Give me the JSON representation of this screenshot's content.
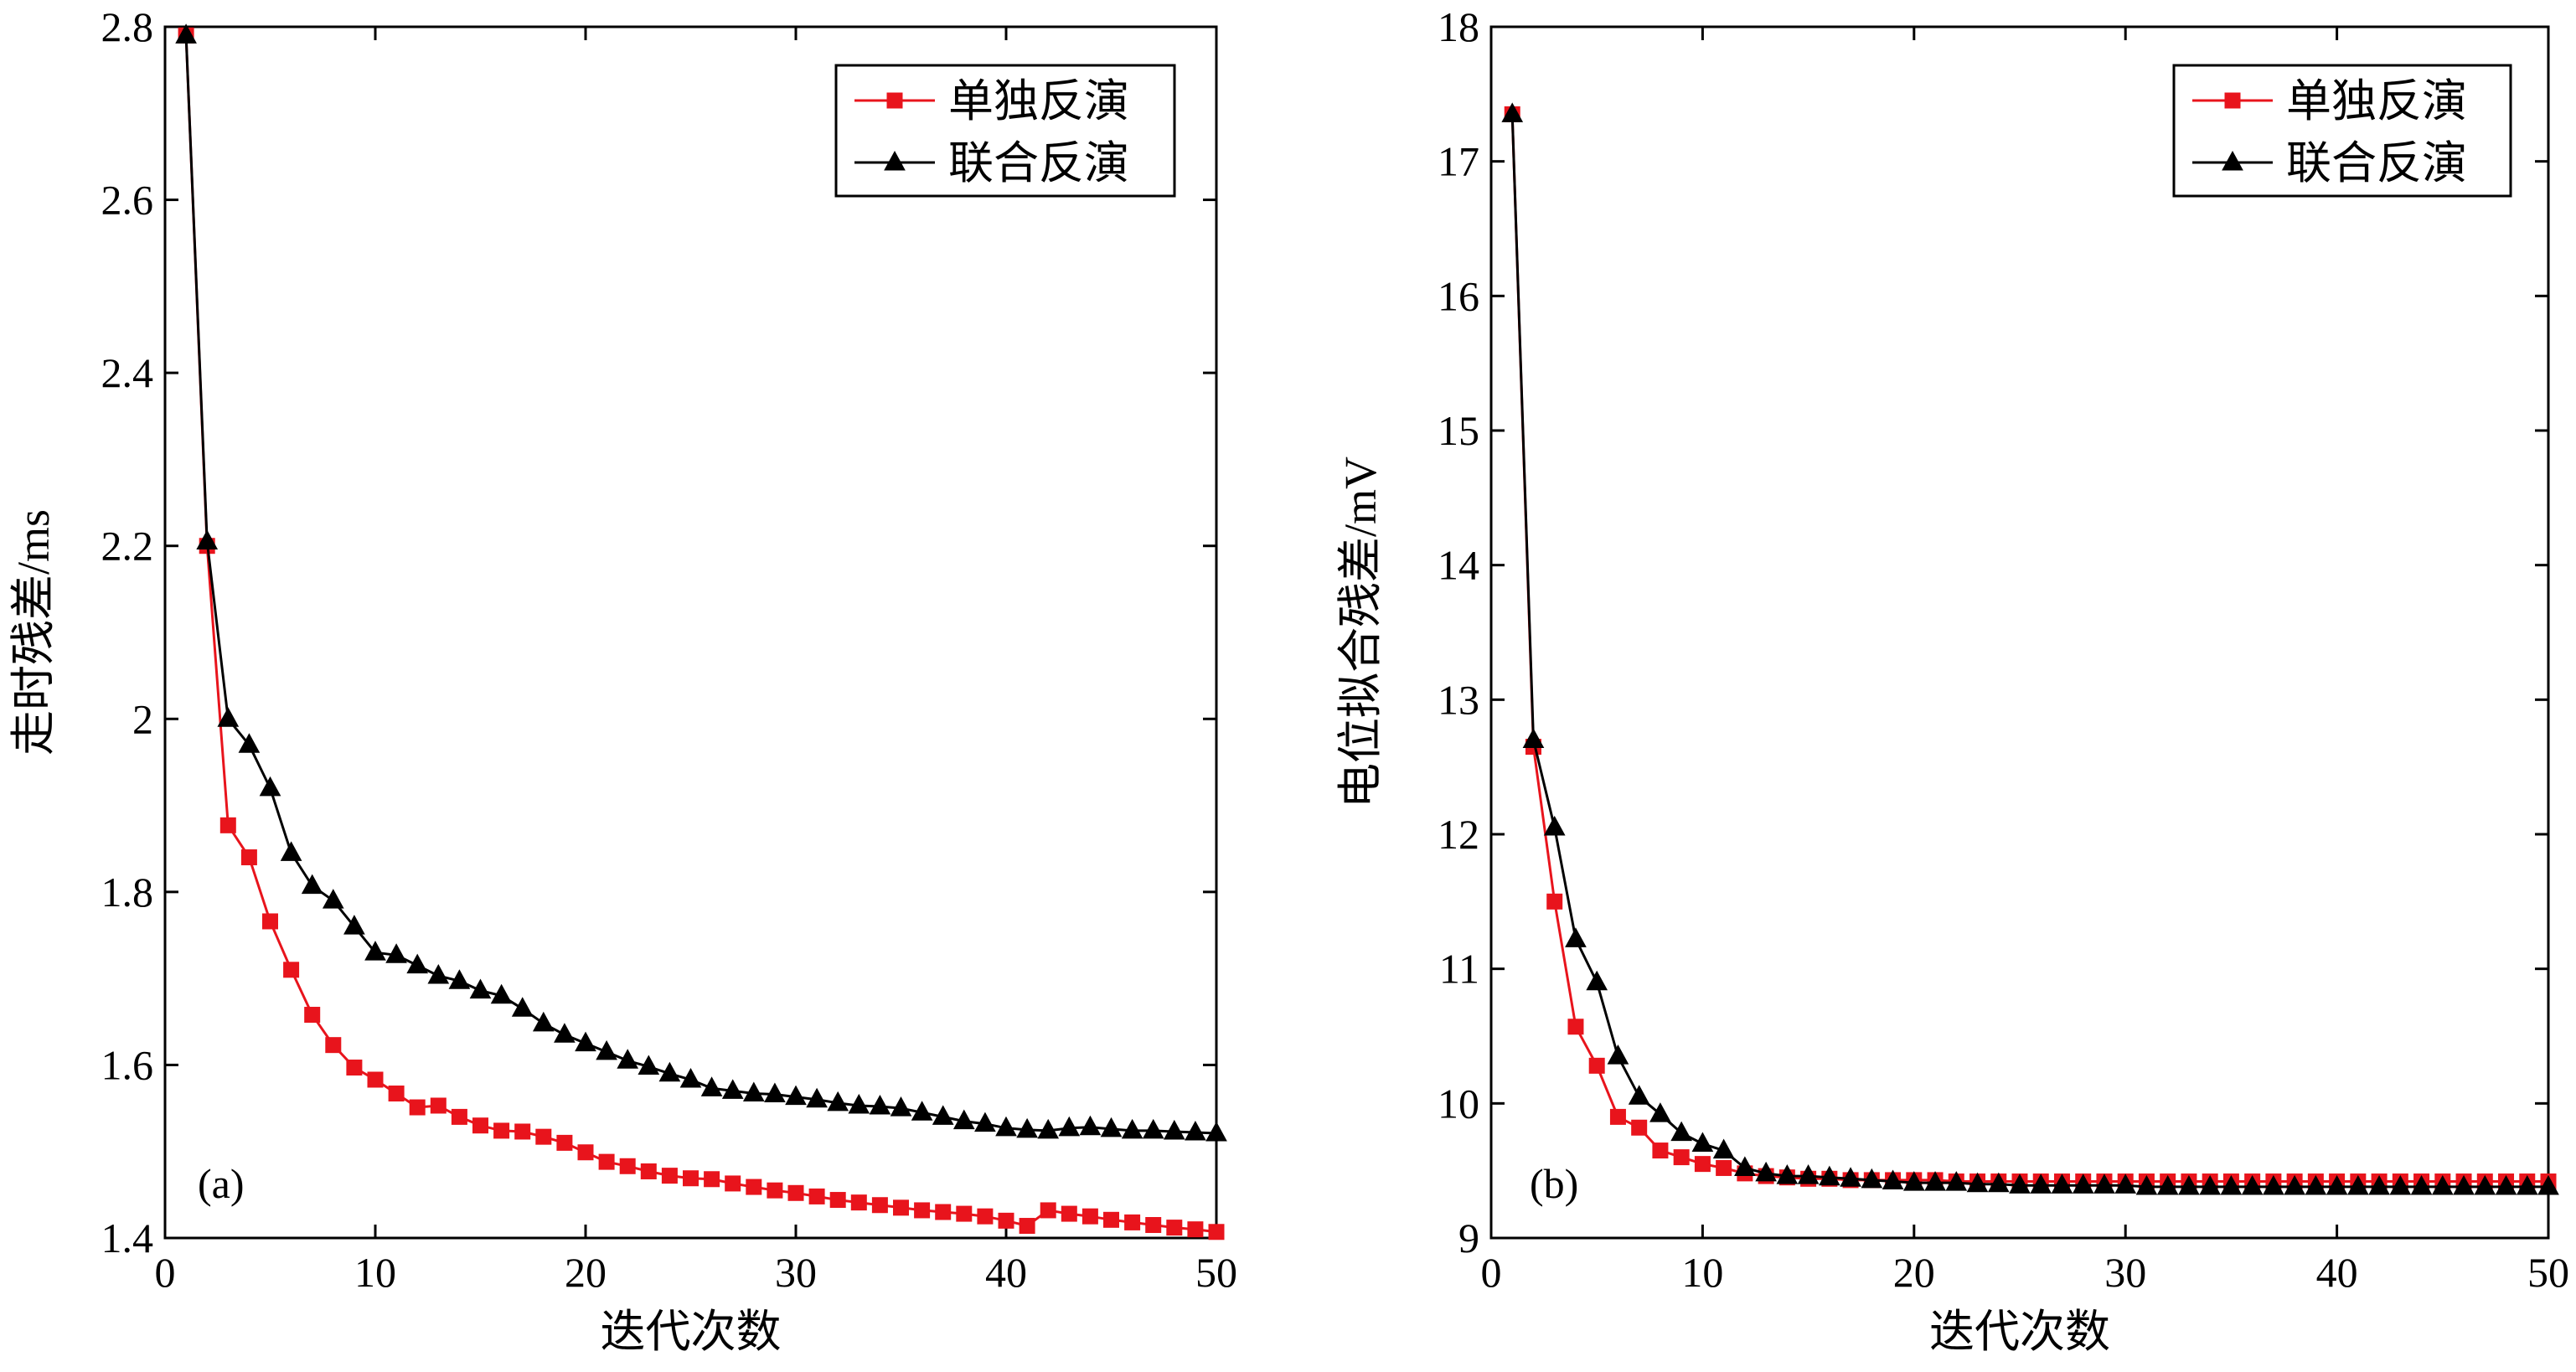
{
  "chart_data": [
    {
      "type": "line",
      "panel_label": "(a)",
      "xlabel": "迭代次数",
      "ylabel": "走时残差/ms",
      "xlim": [
        0,
        50
      ],
      "ylim": [
        1.4,
        2.8
      ],
      "xticks": [
        0,
        10,
        20,
        30,
        40,
        50
      ],
      "xtick_labels": [
        "0",
        "10",
        "20",
        "30",
        "40",
        "50"
      ],
      "yticks": [
        1.4,
        1.6,
        1.8,
        2.0,
        2.2,
        2.4,
        2.6,
        2.8
      ],
      "ytick_labels": [
        "1.4",
        "1.6",
        "1.8",
        "2",
        "2.2",
        "2.4",
        "2.6",
        "2.8"
      ],
      "legend_position": "top-right",
      "x": [
        1,
        2,
        3,
        4,
        5,
        6,
        7,
        8,
        9,
        10,
        11,
        12,
        13,
        14,
        15,
        16,
        17,
        18,
        19,
        20,
        21,
        22,
        23,
        24,
        25,
        26,
        27,
        28,
        29,
        30,
        31,
        32,
        33,
        34,
        35,
        36,
        37,
        38,
        39,
        40,
        41,
        42,
        43,
        44,
        45,
        46,
        47,
        48,
        49,
        50
      ],
      "series": [
        {
          "name": "单独反演",
          "color": "#e8141c",
          "marker": "square",
          "values": [
            2.79,
            2.2,
            1.877,
            1.84,
            1.766,
            1.71,
            1.658,
            1.623,
            1.597,
            1.583,
            1.567,
            1.551,
            1.553,
            1.54,
            1.53,
            1.524,
            1.523,
            1.517,
            1.51,
            1.499,
            1.488,
            1.483,
            1.477,
            1.472,
            1.469,
            1.468,
            1.463,
            1.459,
            1.455,
            1.452,
            1.448,
            1.444,
            1.441,
            1.438,
            1.435,
            1.432,
            1.43,
            1.428,
            1.425,
            1.42,
            1.414,
            1.432,
            1.428,
            1.425,
            1.421,
            1.418,
            1.415,
            1.412,
            1.41,
            1.407
          ]
        },
        {
          "name": "联合反演",
          "color": "#000000",
          "marker": "triangle",
          "values": [
            2.79,
            2.205,
            2.0,
            1.97,
            1.92,
            1.845,
            1.807,
            1.79,
            1.76,
            1.73,
            1.727,
            1.715,
            1.703,
            1.697,
            1.686,
            1.68,
            1.665,
            1.648,
            1.635,
            1.625,
            1.615,
            1.605,
            1.598,
            1.59,
            1.583,
            1.573,
            1.57,
            1.567,
            1.566,
            1.563,
            1.56,
            1.556,
            1.553,
            1.552,
            1.55,
            1.545,
            1.54,
            1.535,
            1.532,
            1.527,
            1.525,
            1.524,
            1.527,
            1.528,
            1.526,
            1.524,
            1.524,
            1.523,
            1.522,
            1.521
          ]
        }
      ]
    },
    {
      "type": "line",
      "panel_label": "(b)",
      "xlabel": "迭代次数",
      "ylabel": "电位拟合残差/mV",
      "xlim": [
        0,
        50
      ],
      "ylim": [
        9,
        18
      ],
      "xticks": [
        0,
        10,
        20,
        30,
        40,
        50
      ],
      "xtick_labels": [
        "0",
        "10",
        "20",
        "30",
        "40",
        "50"
      ],
      "yticks": [
        9,
        10,
        11,
        12,
        13,
        14,
        15,
        16,
        17,
        18
      ],
      "ytick_labels": [
        "9",
        "10",
        "11",
        "12",
        "13",
        "14",
        "15",
        "16",
        "17",
        "18"
      ],
      "legend_position": "top-right",
      "x": [
        1,
        2,
        3,
        4,
        5,
        6,
        7,
        8,
        9,
        10,
        11,
        12,
        13,
        14,
        15,
        16,
        17,
        18,
        19,
        20,
        21,
        22,
        23,
        24,
        25,
        26,
        27,
        28,
        29,
        30,
        31,
        32,
        33,
        34,
        35,
        36,
        37,
        38,
        39,
        40,
        41,
        42,
        43,
        44,
        45,
        46,
        47,
        48,
        49,
        50
      ],
      "series": [
        {
          "name": "单独反演",
          "color": "#e8141c",
          "marker": "square",
          "values": [
            17.35,
            12.65,
            11.5,
            10.57,
            10.28,
            9.9,
            9.82,
            9.65,
            9.6,
            9.55,
            9.52,
            9.48,
            9.46,
            9.45,
            9.44,
            9.44,
            9.43,
            9.43,
            9.43,
            9.43,
            9.43,
            9.42,
            9.42,
            9.42,
            9.42,
            9.42,
            9.42,
            9.42,
            9.42,
            9.42,
            9.42,
            9.42,
            9.42,
            9.42,
            9.42,
            9.42,
            9.42,
            9.42,
            9.42,
            9.42,
            9.42,
            9.42,
            9.42,
            9.42,
            9.42,
            9.42,
            9.42,
            9.42,
            9.42,
            9.42
          ]
        },
        {
          "name": "联合反演",
          "color": "#000000",
          "marker": "triangle",
          "values": [
            17.35,
            12.7,
            12.05,
            11.22,
            10.9,
            10.35,
            10.05,
            9.92,
            9.78,
            9.7,
            9.65,
            9.52,
            9.48,
            9.46,
            9.46,
            9.45,
            9.44,
            9.43,
            9.42,
            9.41,
            9.41,
            9.41,
            9.4,
            9.4,
            9.39,
            9.39,
            9.39,
            9.39,
            9.39,
            9.39,
            9.38,
            9.38,
            9.38,
            9.38,
            9.38,
            9.38,
            9.38,
            9.38,
            9.38,
            9.38,
            9.38,
            9.38,
            9.38,
            9.38,
            9.38,
            9.38,
            9.38,
            9.38,
            9.38,
            9.38
          ]
        }
      ]
    }
  ]
}
